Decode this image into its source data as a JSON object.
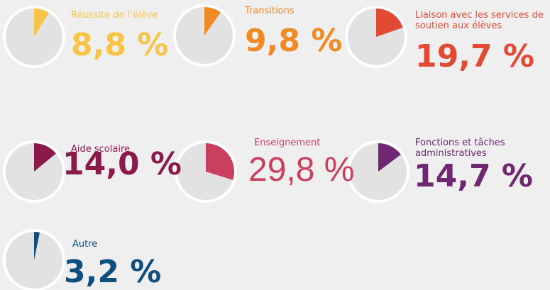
{
  "chart_data": [
    {
      "type": "pie",
      "title": "Réussite de l’élève",
      "values": [
        8.8
      ],
      "value_labels": [
        "8,8 %"
      ],
      "color": "#f9c446"
    },
    {
      "type": "pie",
      "title": "Transitions",
      "values": [
        9.8
      ],
      "value_labels": [
        "9,8 %"
      ],
      "color": "#f08a24"
    },
    {
      "type": "pie",
      "title": "Liaison avec les services de soutien aux élèves",
      "values": [
        19.7
      ],
      "value_labels": [
        "19,7 %"
      ],
      "color": "#e24b33"
    },
    {
      "type": "pie",
      "title": "Aide scolaire",
      "values": [
        14.0
      ],
      "value_labels": [
        "14,0 %"
      ],
      "color": "#8b1a4a"
    },
    {
      "type": "pie",
      "title": "Enseignement",
      "values": [
        29.8
      ],
      "value_labels": [
        "29,8 %"
      ],
      "color": "#c9405f"
    },
    {
      "type": "pie",
      "title": "Fonctions et tâches administratives",
      "values": [
        14.7
      ],
      "value_labels": [
        "14,7 %"
      ],
      "color": "#6e2770"
    },
    {
      "type": "pie",
      "title": "Autre",
      "values": [
        3.2
      ],
      "value_labels": [
        "3,2 %"
      ],
      "color": "#0f4f80"
    }
  ]
}
